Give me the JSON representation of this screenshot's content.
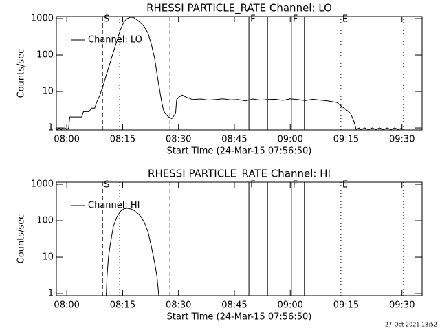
{
  "footer": "27-Oct-2021 18:52",
  "chart_data": [
    {
      "type": "line",
      "title": "RHESSI PARTICLE_RATE Channel: LO",
      "xlabel": "Start Time (24-Mar-15 07:56:50)",
      "ylabel": "Counts/sec",
      "ylog": true,
      "ylim": [
        0.88,
        1140
      ],
      "yticks": [
        1,
        10,
        100,
        1000
      ],
      "xlim": [
        -2.8,
        95.4
      ],
      "xticks": [
        {
          "value": 0,
          "label": "08:00"
        },
        {
          "value": 15,
          "label": "08:15"
        },
        {
          "value": 30,
          "label": "08:30"
        },
        {
          "value": 45,
          "label": "08:45"
        },
        {
          "value": 60,
          "label": "09:00"
        },
        {
          "value": 75,
          "label": "09:15"
        },
        {
          "value": 90,
          "label": "09:30"
        }
      ],
      "legend": "upper left",
      "markers": [
        {
          "x": 9.6,
          "style": "dashed",
          "label": "S"
        },
        {
          "x": 14.2,
          "style": "dotted"
        },
        {
          "x": 27.7,
          "style": "dashed"
        },
        {
          "x": 48.9,
          "style": "solid",
          "label": "F"
        },
        {
          "x": 53.9,
          "style": "solid"
        },
        {
          "x": 60.3,
          "style": "solid",
          "label": "F"
        },
        {
          "x": 63.8,
          "style": "solid"
        },
        {
          "x": 73.6,
          "style": "dotted",
          "label": "E"
        },
        {
          "x": 90.4,
          "style": "dotted"
        }
      ],
      "x": [
        -3,
        -2.5,
        -2,
        -1.5,
        -1,
        -0.5,
        0,
        0.5,
        0.8,
        2,
        3,
        4,
        4.5,
        6,
        6.6,
        7.5,
        8,
        8.9,
        9.8,
        10.7,
        11.6,
        12.5,
        13.5,
        14.4,
        15.3,
        16.2,
        17.2,
        18.1,
        19,
        19.9,
        20.8,
        21.8,
        22.7,
        23.6,
        24.5,
        25.5,
        26,
        26.4,
        27.3,
        28.2,
        29.2,
        29.5,
        30.1,
        31,
        32,
        33.8,
        36,
        38,
        40,
        42,
        44,
        46,
        48,
        50,
        52,
        54,
        56,
        58,
        60,
        62,
        64,
        66,
        68,
        70,
        72.5,
        74.4,
        75.3,
        76.2,
        77.1,
        77.7,
        78.5,
        79,
        80,
        81,
        82,
        83,
        84,
        85,
        86,
        87,
        88,
        89,
        90
      ],
      "series": [
        {
          "name": "Channel: LO",
          "color": "#000000",
          "values": [
            1,
            0.9,
            1,
            0.9,
            1,
            1,
            0.9,
            1,
            2,
            2,
            2,
            2,
            2.8,
            2.8,
            3.5,
            3.5,
            5,
            8,
            15,
            30,
            60,
            120,
            250,
            500,
            800,
            1000,
            1100,
            1050,
            900,
            750,
            600,
            400,
            200,
            80,
            20,
            5,
            3,
            2.5,
            2,
            1.8,
            2.5,
            6,
            7,
            8,
            7,
            6,
            6.2,
            5.8,
            6,
            6.3,
            5.9,
            6,
            5.5,
            6.2,
            5.8,
            6,
            6.1,
            5.7,
            6.3,
            6,
            5.6,
            6.1,
            5.8,
            5.5,
            5,
            3.5,
            3,
            2.5,
            1.5,
            0.9,
            1,
            0.9,
            1,
            0.9,
            1,
            0.9,
            1,
            0.9,
            1,
            0.9,
            1,
            0.9,
            1
          ]
        }
      ]
    },
    {
      "type": "line",
      "title": "RHESSI PARTICLE_RATE Channel: HI",
      "xlabel": "Start Time (24-Mar-15 07:56:50)",
      "ylabel": "Counts/sec",
      "ylog": true,
      "ylim": [
        0.88,
        1140
      ],
      "yticks": [
        1,
        10,
        100,
        1000
      ],
      "xlim": [
        -2.8,
        95.4
      ],
      "xticks": [
        {
          "value": 0,
          "label": "08:00"
        },
        {
          "value": 15,
          "label": "08:15"
        },
        {
          "value": 30,
          "label": "08:30"
        },
        {
          "value": 45,
          "label": "08:45"
        },
        {
          "value": 60,
          "label": "09:00"
        },
        {
          "value": 75,
          "label": "09:15"
        },
        {
          "value": 90,
          "label": "09:30"
        }
      ],
      "legend": "upper left",
      "markers": [
        {
          "x": 9.6,
          "style": "dashed",
          "label": "S"
        },
        {
          "x": 14.2,
          "style": "dotted"
        },
        {
          "x": 27.7,
          "style": "dashed"
        },
        {
          "x": 48.9,
          "style": "solid",
          "label": "F"
        },
        {
          "x": 53.9,
          "style": "solid"
        },
        {
          "x": 60.3,
          "style": "solid",
          "label": "F"
        },
        {
          "x": 63.8,
          "style": "solid"
        },
        {
          "x": 73.6,
          "style": "dotted",
          "label": "E"
        },
        {
          "x": 90.4,
          "style": "dotted"
        }
      ],
      "x": [
        10.6,
        10.8,
        11.2,
        11.6,
        12.5,
        13.5,
        14.4,
        15.3,
        16.2,
        17.2,
        18.1,
        19,
        19.9,
        20.8,
        21.8,
        22.7,
        23.6,
        24.2,
        24.7
      ],
      "series": [
        {
          "name": "Channel: HI",
          "color": "#000000",
          "values": [
            0.9,
            3,
            10,
            20,
            70,
            130,
            180,
            210,
            220,
            210,
            190,
            160,
            130,
            90,
            50,
            20,
            7,
            3,
            0.9
          ]
        }
      ]
    }
  ]
}
